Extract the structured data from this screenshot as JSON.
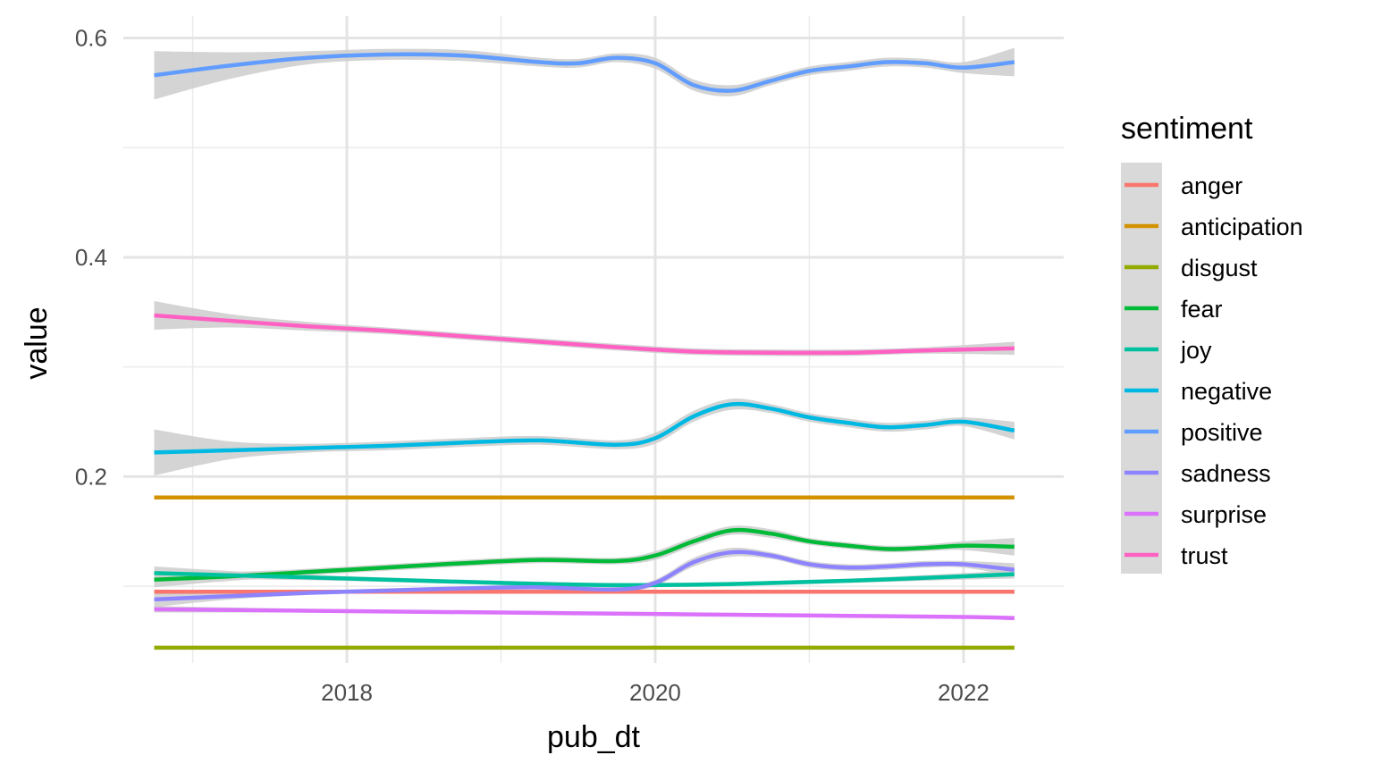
{
  "chart_data": {
    "type": "line",
    "xlabel": "pub_dt",
    "ylabel": "value",
    "xlim": [
      2016.55,
      2022.65
    ],
    "ylim": [
      0.03,
      0.62
    ],
    "x_ticks": [
      2018,
      2020,
      2022
    ],
    "x_tick_labels": [
      "2018",
      "2020",
      "2022"
    ],
    "x_minor_ticks": [
      2017,
      2019,
      2021
    ],
    "y_ticks": [
      0.2,
      0.4,
      0.6
    ],
    "y_tick_labels": [
      "0.2",
      "0.4",
      "0.6"
    ],
    "y_minor_ticks": [
      0.1,
      0.3,
      0.5
    ],
    "grid": true,
    "smoothed_with_confidence_band": true,
    "band_color": "#cccccc",
    "legend": {
      "title": "sentiment",
      "position": "right"
    },
    "series": [
      {
        "name": "anger",
        "color": "#F8766D",
        "x": [
          2016.75,
          2017.5,
          2018.25,
          2019,
          2019.75,
          2020.5,
          2021.25,
          2022.0,
          2022.33
        ],
        "y": [
          0.095,
          0.095,
          0.095,
          0.095,
          0.095,
          0.095,
          0.095,
          0.095,
          0.095
        ],
        "band": [
          0.002,
          0.001,
          0.001,
          0.001,
          0.001,
          0.001,
          0.001,
          0.001,
          0.002
        ]
      },
      {
        "name": "anticipation",
        "color": "#D39200",
        "x": [
          2016.75,
          2017.5,
          2018.25,
          2019,
          2019.75,
          2020.5,
          2021.25,
          2022.0,
          2022.33
        ],
        "y": [
          0.181,
          0.181,
          0.181,
          0.181,
          0.181,
          0.181,
          0.181,
          0.181,
          0.181
        ],
        "band": [
          0.001,
          0.001,
          0.001,
          0.001,
          0.001,
          0.001,
          0.001,
          0.001,
          0.001
        ]
      },
      {
        "name": "disgust",
        "color": "#93AA00",
        "x": [
          2016.75,
          2017.5,
          2018.25,
          2019,
          2019.75,
          2020.5,
          2021.25,
          2022.0,
          2022.33
        ],
        "y": [
          0.044,
          0.044,
          0.044,
          0.044,
          0.044,
          0.044,
          0.044,
          0.044,
          0.044
        ],
        "band": [
          0.001,
          0.001,
          0.001,
          0.001,
          0.001,
          0.001,
          0.001,
          0.001,
          0.001
        ]
      },
      {
        "name": "fear",
        "color": "#00BA38",
        "x": [
          2016.75,
          2017.25,
          2017.75,
          2018.25,
          2018.75,
          2019.25,
          2019.75,
          2020.0,
          2020.25,
          2020.5,
          2020.75,
          2021.0,
          2021.25,
          2021.5,
          2021.75,
          2022.0,
          2022.33
        ],
        "y": [
          0.106,
          0.109,
          0.113,
          0.117,
          0.121,
          0.124,
          0.123,
          0.128,
          0.141,
          0.151,
          0.148,
          0.141,
          0.137,
          0.134,
          0.135,
          0.137,
          0.136
        ],
        "band": [
          0.007,
          0.004,
          0.003,
          0.003,
          0.003,
          0.003,
          0.003,
          0.004,
          0.004,
          0.004,
          0.004,
          0.003,
          0.003,
          0.003,
          0.003,
          0.004,
          0.008
        ]
      },
      {
        "name": "joy",
        "color": "#00C19F",
        "x": [
          2016.75,
          2017.5,
          2018.25,
          2019.0,
          2019.75,
          2020.5,
          2021.25,
          2022.0,
          2022.33
        ],
        "y": [
          0.112,
          0.109,
          0.106,
          0.103,
          0.101,
          0.102,
          0.105,
          0.109,
          0.111
        ],
        "band": [
          0.006,
          0.003,
          0.002,
          0.002,
          0.002,
          0.002,
          0.002,
          0.003,
          0.004
        ]
      },
      {
        "name": "negative",
        "color": "#00B9E3",
        "x": [
          2016.75,
          2017.25,
          2017.75,
          2018.25,
          2018.75,
          2019.25,
          2019.75,
          2020.0,
          2020.25,
          2020.5,
          2020.75,
          2021.0,
          2021.25,
          2021.5,
          2021.75,
          2022.0,
          2022.33
        ],
        "y": [
          0.222,
          0.224,
          0.226,
          0.228,
          0.231,
          0.233,
          0.229,
          0.235,
          0.255,
          0.266,
          0.262,
          0.254,
          0.249,
          0.245,
          0.247,
          0.25,
          0.242
        ],
        "band": [
          0.021,
          0.008,
          0.004,
          0.004,
          0.004,
          0.004,
          0.004,
          0.005,
          0.005,
          0.005,
          0.004,
          0.004,
          0.004,
          0.004,
          0.004,
          0.004,
          0.008
        ]
      },
      {
        "name": "positive",
        "color": "#619CFF",
        "x": [
          2016.75,
          2017.25,
          2017.75,
          2018.25,
          2018.75,
          2019.25,
          2019.5,
          2019.75,
          2020.0,
          2020.25,
          2020.5,
          2020.75,
          2021.0,
          2021.25,
          2021.5,
          2021.75,
          2022.0,
          2022.33
        ],
        "y": [
          0.566,
          0.575,
          0.582,
          0.585,
          0.584,
          0.578,
          0.577,
          0.582,
          0.577,
          0.557,
          0.552,
          0.561,
          0.57,
          0.574,
          0.578,
          0.577,
          0.573,
          0.578
        ],
        "band": [
          0.022,
          0.012,
          0.006,
          0.005,
          0.005,
          0.004,
          0.004,
          0.004,
          0.005,
          0.005,
          0.005,
          0.004,
          0.004,
          0.004,
          0.004,
          0.004,
          0.005,
          0.013
        ]
      },
      {
        "name": "sadness",
        "color": "#8E83FF",
        "x": [
          2016.75,
          2017.25,
          2017.75,
          2018.25,
          2018.75,
          2019.25,
          2019.75,
          2020.0,
          2020.25,
          2020.5,
          2020.75,
          2021.0,
          2021.25,
          2021.5,
          2021.75,
          2022.0,
          2022.33
        ],
        "y": [
          0.088,
          0.091,
          0.094,
          0.096,
          0.098,
          0.099,
          0.097,
          0.103,
          0.122,
          0.131,
          0.128,
          0.12,
          0.117,
          0.118,
          0.12,
          0.12,
          0.115
        ],
        "band": [
          0.007,
          0.003,
          0.002,
          0.002,
          0.002,
          0.002,
          0.002,
          0.003,
          0.004,
          0.004,
          0.003,
          0.003,
          0.003,
          0.003,
          0.003,
          0.003,
          0.006
        ]
      },
      {
        "name": "surprise",
        "color": "#DB72FB",
        "x": [
          2016.75,
          2017.5,
          2018.25,
          2019.0,
          2019.75,
          2020.5,
          2021.25,
          2022.0,
          2022.33
        ],
        "y": [
          0.079,
          0.078,
          0.077,
          0.076,
          0.075,
          0.074,
          0.073,
          0.072,
          0.071
        ],
        "band": [
          0.003,
          0.002,
          0.001,
          0.001,
          0.001,
          0.001,
          0.001,
          0.001,
          0.002
        ]
      },
      {
        "name": "trust",
        "color": "#FF61C3",
        "x": [
          2016.75,
          2017.25,
          2017.75,
          2018.25,
          2018.75,
          2019.25,
          2019.75,
          2020.25,
          2020.75,
          2021.25,
          2021.75,
          2022.33
        ],
        "y": [
          0.347,
          0.342,
          0.337,
          0.333,
          0.328,
          0.323,
          0.318,
          0.314,
          0.313,
          0.313,
          0.315,
          0.317
        ],
        "band": [
          0.013,
          0.006,
          0.004,
          0.003,
          0.003,
          0.003,
          0.003,
          0.003,
          0.003,
          0.003,
          0.003,
          0.006
        ]
      }
    ]
  }
}
